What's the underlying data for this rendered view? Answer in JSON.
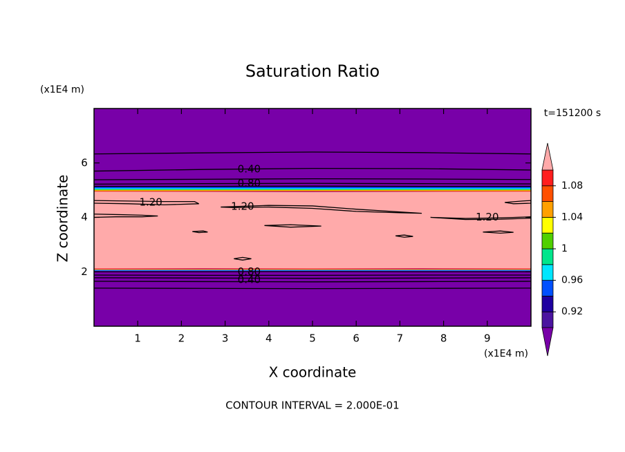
{
  "chart_data": {
    "type": "contour",
    "title": "Saturation Ratio",
    "x_label": "X coordinate",
    "y_label": "Z coordinate",
    "x_unit": "(x1E4 m)",
    "y_unit": "(x1E4 m)",
    "time_label": "t=151200 s",
    "footer": "CONTOUR INTERVAL = 2.000E-01",
    "xlim": [
      0,
      10
    ],
    "ylim": [
      0,
      8
    ],
    "xticks": [
      1,
      2,
      3,
      4,
      5,
      6,
      7,
      8,
      9
    ],
    "yticks": [
      2,
      4,
      6
    ],
    "background_color": "#7800a8",
    "contour_color": "#000000",
    "fills": [
      {
        "color": "#ffaaaa",
        "x": [
          0,
          2.5,
          5,
          7.5,
          10,
          10,
          7.5,
          5,
          2.5,
          0
        ],
        "y": [
          4.95,
          4.94,
          4.93,
          4.94,
          4.95,
          2.12,
          2.13,
          2.12,
          2.13,
          2.12
        ]
      },
      {
        "color": "#1e00a0",
        "x": [
          0,
          10,
          10,
          0
        ],
        "y": [
          5.14,
          5.14,
          5.11,
          5.11
        ]
      },
      {
        "color": "#0050ff",
        "x": [
          0,
          10,
          10,
          0
        ],
        "y": [
          5.11,
          5.11,
          5.07,
          5.07
        ]
      },
      {
        "color": "#00e6ff",
        "x": [
          0,
          10,
          10,
          0
        ],
        "y": [
          5.07,
          5.07,
          5.03,
          5.03
        ]
      },
      {
        "color": "#50d000",
        "x": [
          0,
          10,
          10,
          0
        ],
        "y": [
          5.03,
          5.03,
          5.0,
          5.0
        ]
      },
      {
        "color": "#ffff00",
        "x": [
          0,
          10,
          10,
          0
        ],
        "y": [
          5.0,
          5.0,
          4.98,
          4.98
        ]
      },
      {
        "color": "#ff5000",
        "x": [
          0,
          10,
          10,
          0
        ],
        "y": [
          4.98,
          4.98,
          4.95,
          4.95
        ]
      },
      {
        "color": "#ff1e1e",
        "x": [
          0,
          10,
          10,
          0
        ],
        "y": [
          2.12,
          2.12,
          2.09,
          2.09
        ]
      },
      {
        "color": "#ffa000",
        "x": [
          0,
          10,
          10,
          0
        ],
        "y": [
          2.09,
          2.09,
          2.07,
          2.07
        ]
      },
      {
        "color": "#00e6ff",
        "x": [
          0,
          10,
          10,
          0
        ],
        "y": [
          2.07,
          2.07,
          2.05,
          2.05
        ]
      },
      {
        "color": "#0050ff",
        "x": [
          0,
          10,
          10,
          0
        ],
        "y": [
          2.05,
          2.05,
          2.03,
          2.03
        ]
      }
    ],
    "contours": [
      {
        "x": [
          0,
          2.5,
          5,
          7.5,
          10
        ],
        "y": [
          6.33,
          6.37,
          6.4,
          6.38,
          6.33
        ]
      },
      {
        "x": [
          0,
          2.5,
          5,
          7.5,
          10
        ],
        "y": [
          5.7,
          5.76,
          5.8,
          5.79,
          5.74
        ]
      },
      {
        "x": [
          0,
          2.5,
          5,
          7.5,
          10
        ],
        "y": [
          5.38,
          5.4,
          5.42,
          5.41,
          5.39
        ]
      },
      {
        "x": [
          0,
          2.5,
          5,
          7.5,
          10
        ],
        "y": [
          5.22,
          5.24,
          5.25,
          5.24,
          5.23
        ]
      },
      {
        "x": [
          0,
          2.5,
          5,
          7.5,
          10
        ],
        "y": [
          5.14,
          5.14,
          5.15,
          5.14,
          5.14
        ]
      },
      {
        "x": [
          0,
          2.5,
          5,
          7.5,
          10
        ],
        "y": [
          2.0,
          2.0,
          2.01,
          2.0,
          2.0
        ]
      },
      {
        "x": [
          0,
          2.5,
          5,
          7.5,
          10
        ],
        "y": [
          1.88,
          1.87,
          1.87,
          1.88,
          1.88
        ]
      },
      {
        "x": [
          0,
          2.5,
          5,
          7.5,
          10
        ],
        "y": [
          1.78,
          1.77,
          1.76,
          1.77,
          1.78
        ]
      },
      {
        "x": [
          0,
          2.5,
          5,
          7.5,
          10
        ],
        "y": [
          1.65,
          1.64,
          1.63,
          1.64,
          1.65
        ]
      },
      {
        "x": [
          0,
          2.5,
          5,
          7.5,
          10
        ],
        "y": [
          1.4,
          1.39,
          1.38,
          1.39,
          1.4
        ]
      },
      {
        "x": [
          0,
          0.8,
          1.6,
          2.3,
          2.4,
          1.6,
          0.8,
          0
        ],
        "y": [
          4.62,
          4.6,
          4.58,
          4.58,
          4.5,
          4.46,
          4.5,
          4.52
        ]
      },
      {
        "x": [
          0,
          0.6,
          1.1,
          1.46,
          1.1,
          0.5,
          0
        ],
        "y": [
          4.12,
          4.1,
          4.08,
          4.05,
          4.02,
          4.02,
          4.0
        ]
      },
      {
        "x": [
          2.9,
          4,
          5,
          6,
          7,
          7.5,
          7,
          6,
          5,
          4,
          3.2,
          2.9
        ],
        "y": [
          4.38,
          4.44,
          4.42,
          4.3,
          4.2,
          4.15,
          4.17,
          4.22,
          4.33,
          4.38,
          4.36,
          4.38
        ]
      },
      {
        "x": [
          7.7,
          8.5,
          9.3,
          10,
          10,
          9.3,
          8.5,
          7.7
        ],
        "y": [
          4.0,
          3.96,
          3.98,
          4.02,
          3.97,
          3.93,
          3.92,
          4.0
        ]
      },
      {
        "x": [
          9.4,
          9.8,
          10,
          10,
          9.6,
          9.4
        ],
        "y": [
          4.55,
          4.6,
          4.62,
          4.52,
          4.5,
          4.55
        ]
      },
      {
        "x": [
          3.9,
          4.5,
          5.2,
          4.5,
          3.9
        ],
        "y": [
          3.7,
          3.73,
          3.68,
          3.64,
          3.7
        ]
      },
      {
        "x": [
          2.25,
          2.5,
          2.6,
          2.4,
          2.25
        ],
        "y": [
          3.48,
          3.5,
          3.46,
          3.44,
          3.48
        ]
      },
      {
        "x": [
          6.9,
          7.1,
          7.3,
          7.1,
          6.9
        ],
        "y": [
          3.32,
          3.35,
          3.3,
          3.27,
          3.32
        ]
      },
      {
        "x": [
          8.9,
          9.3,
          9.6,
          9.3,
          8.9
        ],
        "y": [
          3.46,
          3.5,
          3.45,
          3.42,
          3.46
        ]
      },
      {
        "x": [
          3.2,
          3.4,
          3.6,
          3.4,
          3.2
        ],
        "y": [
          2.48,
          2.53,
          2.48,
          2.43,
          2.48
        ]
      }
    ],
    "contour_labels": [
      {
        "text": "0.40",
        "x": 3.55,
        "y": 5.77
      },
      {
        "text": "0.80",
        "x": 3.55,
        "y": 5.25
      },
      {
        "text": "1.20",
        "x": 1.3,
        "y": 4.55
      },
      {
        "text": "1.20",
        "x": 3.4,
        "y": 4.39
      },
      {
        "text": "1.20",
        "x": 9.0,
        "y": 4.0
      },
      {
        "text": "0.80",
        "x": 3.55,
        "y": 2.0
      },
      {
        "text": "0.40",
        "x": 3.55,
        "y": 1.7
      }
    ],
    "colorbar": {
      "lim": [
        0.9,
        1.1
      ],
      "ticks": [
        0.92,
        0.96,
        1,
        1.04,
        1.08
      ],
      "levels": [
        0.9,
        0.92,
        0.94,
        0.96,
        0.98,
        1,
        1.02,
        1.04,
        1.06,
        1.08,
        1.1
      ],
      "colors": [
        "#7800a8",
        "#4b14a0",
        "#1e00a0",
        "#0050ff",
        "#00e6ff",
        "#00e68c",
        "#50d000",
        "#ffff00",
        "#ffa000",
        "#ff5000",
        "#ff1e1e",
        "#ffaaaa"
      ]
    }
  }
}
